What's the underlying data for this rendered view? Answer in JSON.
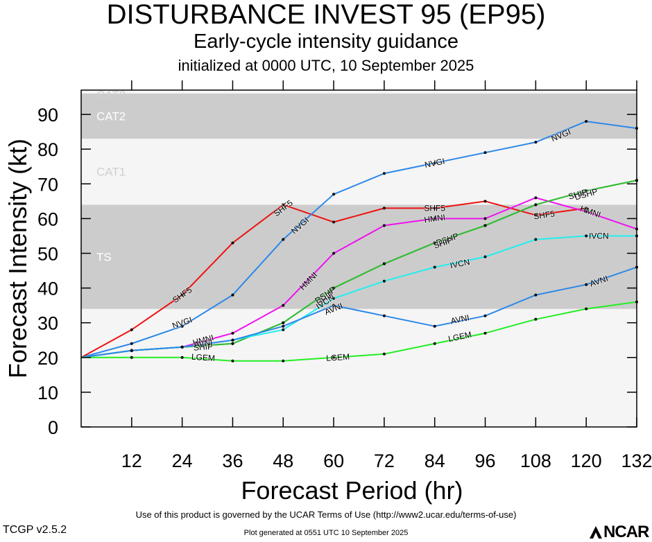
{
  "header": {
    "title": "DISTURBANCE INVEST 95 (EP95)",
    "subtitle": "Early-cycle intensity guidance",
    "init_line": "initialized at 0000 UTC, 10 September 2025"
  },
  "footer": {
    "terms": "Use of this product is governed by the UCAR Terms of Use (http://www2.ucar.edu/terms-of-use)",
    "version": "TCGP v2.5.2",
    "generated": "Plot generated at 0551 UTC   10 September 2025",
    "logo_text": "NCAR",
    "logo_icon": "ncar-logo-icon"
  },
  "chart_data": {
    "type": "line",
    "xlabel": "Forecast Period (hr)",
    "ylabel": "Forecast Intensity (kt)",
    "xlim": [
      0,
      132
    ],
    "ylim": [
      0,
      97
    ],
    "xticks": [
      12,
      24,
      36,
      48,
      60,
      72,
      84,
      96,
      108,
      120,
      132
    ],
    "yticks": [
      0,
      10,
      20,
      30,
      40,
      50,
      60,
      70,
      80,
      90
    ],
    "bands": [
      {
        "label": "TS",
        "from": 34,
        "to": 64,
        "color": "#cccccc"
      },
      {
        "label": "CAT1",
        "from": 64,
        "to": 83,
        "color": "#f5f5f5"
      },
      {
        "label": "CAT2",
        "from": 83,
        "to": 96,
        "color": "#cccccc"
      },
      {
        "label": "CAT3",
        "from": 96,
        "to": 97,
        "color": "#f5f5f5"
      }
    ],
    "below_band_color": "#f5f5f5",
    "series": [
      {
        "name": "SHF5",
        "color": "#ee1111",
        "points": [
          [
            0,
            20
          ],
          [
            12,
            28
          ],
          [
            24,
            38
          ],
          [
            36,
            53
          ],
          [
            48,
            64
          ],
          [
            60,
            59
          ],
          [
            72,
            63
          ],
          [
            84,
            63
          ],
          [
            96,
            65
          ],
          [
            108,
            61
          ],
          [
            120,
            63
          ]
        ],
        "label_at": [
          [
            24,
            38
          ],
          [
            48,
            63
          ],
          [
            84,
            63
          ],
          [
            110,
            61
          ]
        ]
      },
      {
        "name": "NVGI",
        "color": "#2b88e8",
        "points": [
          [
            0,
            20
          ],
          [
            12,
            24
          ],
          [
            24,
            29
          ],
          [
            36,
            38
          ],
          [
            48,
            54
          ],
          [
            60,
            67
          ],
          [
            72,
            73
          ],
          [
            84,
            76
          ],
          [
            96,
            79
          ],
          [
            108,
            82
          ],
          [
            120,
            88
          ],
          [
            132,
            86
          ]
        ],
        "label_at": [
          [
            24,
            30
          ],
          [
            52,
            58
          ],
          [
            84,
            76
          ],
          [
            114,
            84
          ]
        ]
      },
      {
        "name": "HMNI",
        "color": "#ee11ee",
        "points": [
          [
            0,
            20
          ],
          [
            12,
            22
          ],
          [
            24,
            23
          ],
          [
            36,
            27
          ],
          [
            48,
            35
          ],
          [
            60,
            50
          ],
          [
            72,
            58
          ],
          [
            84,
            60
          ],
          [
            96,
            60
          ],
          [
            108,
            66
          ],
          [
            120,
            62
          ],
          [
            132,
            57
          ]
        ],
        "label_at": [
          [
            29,
            25
          ],
          [
            54,
            42
          ],
          [
            84,
            60
          ],
          [
            121,
            62
          ]
        ]
      },
      {
        "name": "DSHP",
        "color": "#33bb33",
        "points": [
          [
            0,
            20
          ],
          [
            12,
            22
          ],
          [
            24,
            23
          ],
          [
            36,
            24
          ],
          [
            48,
            30
          ],
          [
            60,
            40
          ],
          [
            72,
            47
          ],
          [
            84,
            53
          ],
          [
            96,
            58
          ],
          [
            108,
            64
          ],
          [
            120,
            68
          ],
          [
            132,
            71
          ]
        ],
        "label_at": [
          [
            58,
            38
          ],
          [
            87,
            54
          ],
          [
            120,
            67
          ]
        ]
      },
      {
        "name": "SHIP",
        "color": "#33bb33",
        "points": [
          [
            0,
            20
          ],
          [
            12,
            22
          ],
          [
            24,
            23
          ],
          [
            36,
            24
          ],
          [
            48,
            30
          ],
          [
            60,
            40
          ],
          [
            72,
            47
          ],
          [
            84,
            53
          ],
          [
            96,
            58
          ],
          [
            108,
            64
          ],
          [
            120,
            68
          ],
          [
            132,
            71
          ]
        ],
        "label_at": [
          [
            29,
            23
          ],
          [
            58,
            37
          ],
          [
            86,
            53
          ],
          [
            118,
            67
          ]
        ]
      },
      {
        "name": "IVCN",
        "color": "#22eeee",
        "points": [
          [
            0,
            20
          ],
          [
            12,
            22
          ],
          [
            24,
            23
          ],
          [
            36,
            25
          ],
          [
            48,
            28
          ],
          [
            60,
            37
          ],
          [
            72,
            42
          ],
          [
            84,
            46
          ],
          [
            96,
            49
          ],
          [
            108,
            54
          ],
          [
            120,
            55
          ],
          [
            132,
            55
          ]
        ],
        "label_at": [
          [
            58,
            36
          ],
          [
            90,
            47
          ],
          [
            123,
            55
          ]
        ]
      },
      {
        "name": "AVNI",
        "color": "#2b88e8",
        "points": [
          [
            0,
            20
          ],
          [
            12,
            22
          ],
          [
            24,
            23
          ],
          [
            36,
            25
          ],
          [
            48,
            29
          ],
          [
            60,
            35
          ],
          [
            72,
            32
          ],
          [
            84,
            29
          ],
          [
            96,
            32
          ],
          [
            108,
            38
          ],
          [
            120,
            41
          ],
          [
            132,
            46
          ]
        ],
        "label_at": [
          [
            29,
            24
          ],
          [
            60,
            34
          ],
          [
            90,
            31
          ],
          [
            123,
            42
          ]
        ]
      },
      {
        "name": "LGEM",
        "color": "#22ee22",
        "points": [
          [
            0,
            20
          ],
          [
            12,
            20
          ],
          [
            24,
            20
          ],
          [
            36,
            19
          ],
          [
            48,
            19
          ],
          [
            60,
            20
          ],
          [
            72,
            21
          ],
          [
            84,
            24
          ],
          [
            96,
            27
          ],
          [
            108,
            31
          ],
          [
            120,
            34
          ],
          [
            132,
            36
          ]
        ],
        "label_at": [
          [
            29,
            20
          ],
          [
            61,
            20
          ],
          [
            90,
            26
          ]
        ]
      }
    ]
  }
}
